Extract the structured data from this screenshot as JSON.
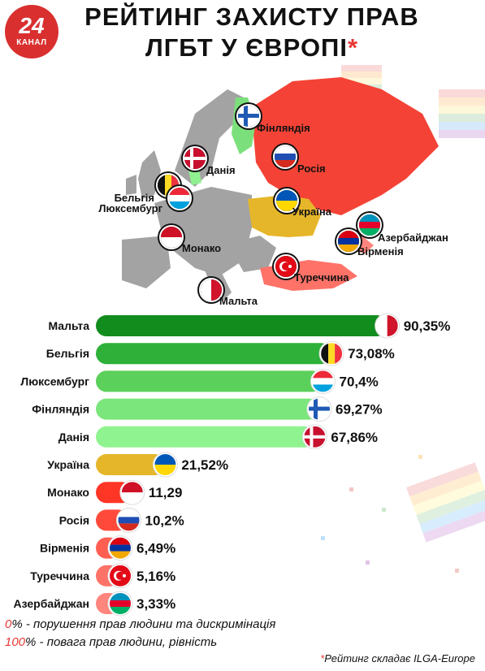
{
  "brand": {
    "logo_number": "24",
    "logo_name": "КАНАЛ"
  },
  "header": {
    "title_line1": "РЕЙТИНГ ЗАХИСТУ ПРАВ",
    "title_line2": "ЛГБТ У ЄВРОПІ",
    "title_star": "*"
  },
  "map": {
    "labels": {
      "finland": "Фінляндія",
      "russia": "Росія",
      "denmark": "Данія",
      "belgium": "Бельгія",
      "luxembourg": "Люксембург",
      "ukraine": "Україна",
      "azerbaijan": "Азербайджан",
      "armenia": "Вірменія",
      "monaco": "Монако",
      "turkey": "Туреччина",
      "malta": "Мальта"
    },
    "colors": {
      "base": "#a3a3a3",
      "russia": "#f44336",
      "ukraine": "#e6b62a",
      "finland": "#7be07b",
      "denmark": "#8ff08f"
    }
  },
  "chart_data": {
    "type": "bar",
    "orientation": "horizontal",
    "categories": [
      "Мальта",
      "Бельгія",
      "Люксембург",
      "Фінляндія",
      "Данія",
      "Україна",
      "Монако",
      "Росія",
      "Вірменія",
      "Туреччина",
      "Азербайджан"
    ],
    "values": [
      90.35,
      73.08,
      70.4,
      69.27,
      67.86,
      21.52,
      11.29,
      10.2,
      6.49,
      5.16,
      3.33
    ],
    "value_labels": [
      "90,35%",
      "73,08%",
      "70,4%",
      "69,27%",
      "67,86%",
      "21,52%",
      "11,29",
      "10,2%",
      "6,49%",
      "5,16%",
      "3,33%"
    ],
    "bar_colors": [
      "#138c1e",
      "#2eb039",
      "#5bd05b",
      "#7be67b",
      "#8ff38f",
      "#e6b62a",
      "#ff3526",
      "#ff4a3b",
      "#ff5e50",
      "#ff7268",
      "#ff857d"
    ],
    "flag_icons": [
      "malta-flag-icon",
      "belgium-flag-icon",
      "luxembourg-flag-icon",
      "finland-flag-icon",
      "denmark-flag-icon",
      "ukraine-flag-icon",
      "monaco-flag-icon",
      "russia-flag-icon",
      "armenia-flag-icon",
      "turkey-flag-icon",
      "azerbaijan-flag-icon"
    ],
    "xlim": [
      0,
      100
    ]
  },
  "legend": {
    "line1_value": "0",
    "line1_text": "% - порушення прав людини та дискримінація",
    "line2_value": "100",
    "line2_text": "% - повага прав людини, рівність"
  },
  "credit": {
    "star": "*",
    "text": "Рейтинг складає ILGA-Europe"
  }
}
